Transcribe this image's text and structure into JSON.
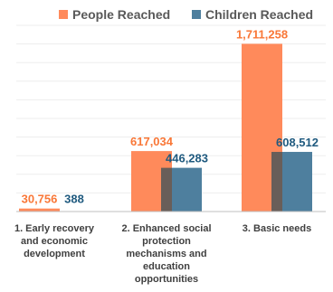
{
  "chart_data": {
    "type": "bar",
    "categories": [
      [
        "1. Early recovery",
        "and economic",
        "development"
      ],
      [
        "2. Enhanced social",
        "protection",
        "mechanisms and",
        "education",
        "opportunities"
      ],
      [
        "3. Basic needs"
      ]
    ],
    "series": [
      {
        "name": "People Reached",
        "values": [
          30756,
          617034,
          1711258
        ],
        "labels": [
          "30,756",
          "617,034",
          "1,711,258"
        ],
        "color": "#FF8A5B"
      },
      {
        "name": "Children Reached",
        "values": [
          388,
          446283,
          608512
        ],
        "labels": [
          "388",
          "446,283",
          "608,512"
        ],
        "color": "#4E7F9E"
      }
    ],
    "ylim": [
      0,
      1900000
    ],
    "grid": true,
    "legend": "top",
    "xlabel": "",
    "ylabel": ""
  }
}
